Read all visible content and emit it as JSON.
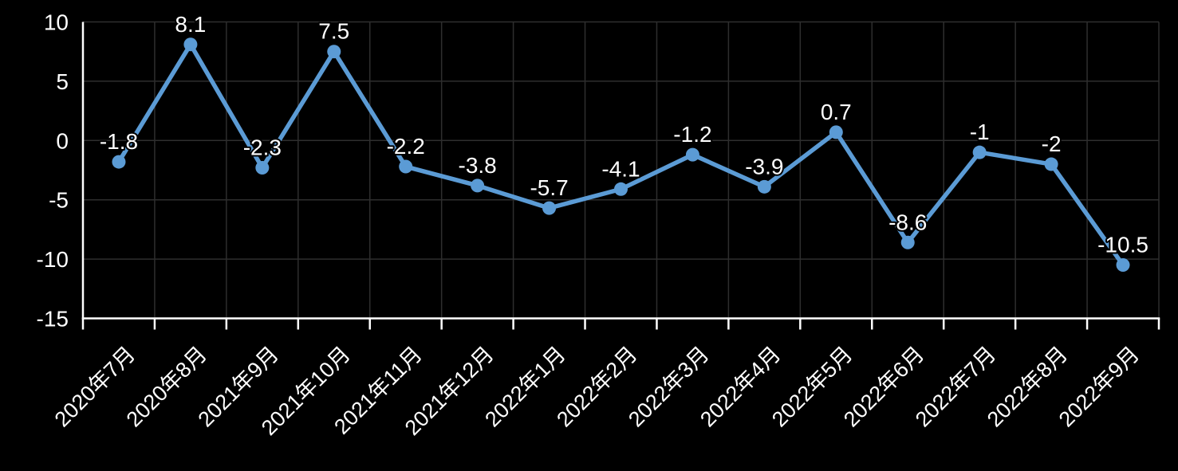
{
  "chart": {
    "background": "#000000",
    "axis_color": "#ffffff",
    "grid_color": "#2e2e2e",
    "text_color": "#ffffff"
  },
  "chart_data": {
    "type": "line",
    "title": "",
    "categories": [
      "2020年7月",
      "2020年8月",
      "2021年9月",
      "2021年10月",
      "2021年11月",
      "2021年12月",
      "2022年1月",
      "2022年2月",
      "2022年3月",
      "2022年4月",
      "2022年5月",
      "2022年6月",
      "2022年7月",
      "2022年8月",
      "2022年9月"
    ],
    "series": [
      {
        "name": "",
        "color": "#5b9bd5",
        "values": [
          -1.8,
          8.1,
          -2.3,
          7.5,
          -2.2,
          -3.8,
          -5.7,
          -4.1,
          -1.2,
          -3.9,
          0.7,
          -8.6,
          -1,
          -2,
          -10.5
        ],
        "data_labels": [
          "-1.8",
          "8.1",
          "-2.3",
          "7.5",
          "-2.2",
          "-3.8",
          "-5.7",
          "-4.1",
          "-1.2",
          "-3.9",
          "0.7",
          "-8.6",
          "-1",
          "-2",
          "-10.5"
        ]
      }
    ],
    "ylim": [
      -15,
      10
    ],
    "yticks": [
      10,
      5,
      0,
      -5,
      -10,
      -15
    ],
    "grid": true,
    "legend": false,
    "marker": "circle",
    "x_label_rotation": -45
  }
}
